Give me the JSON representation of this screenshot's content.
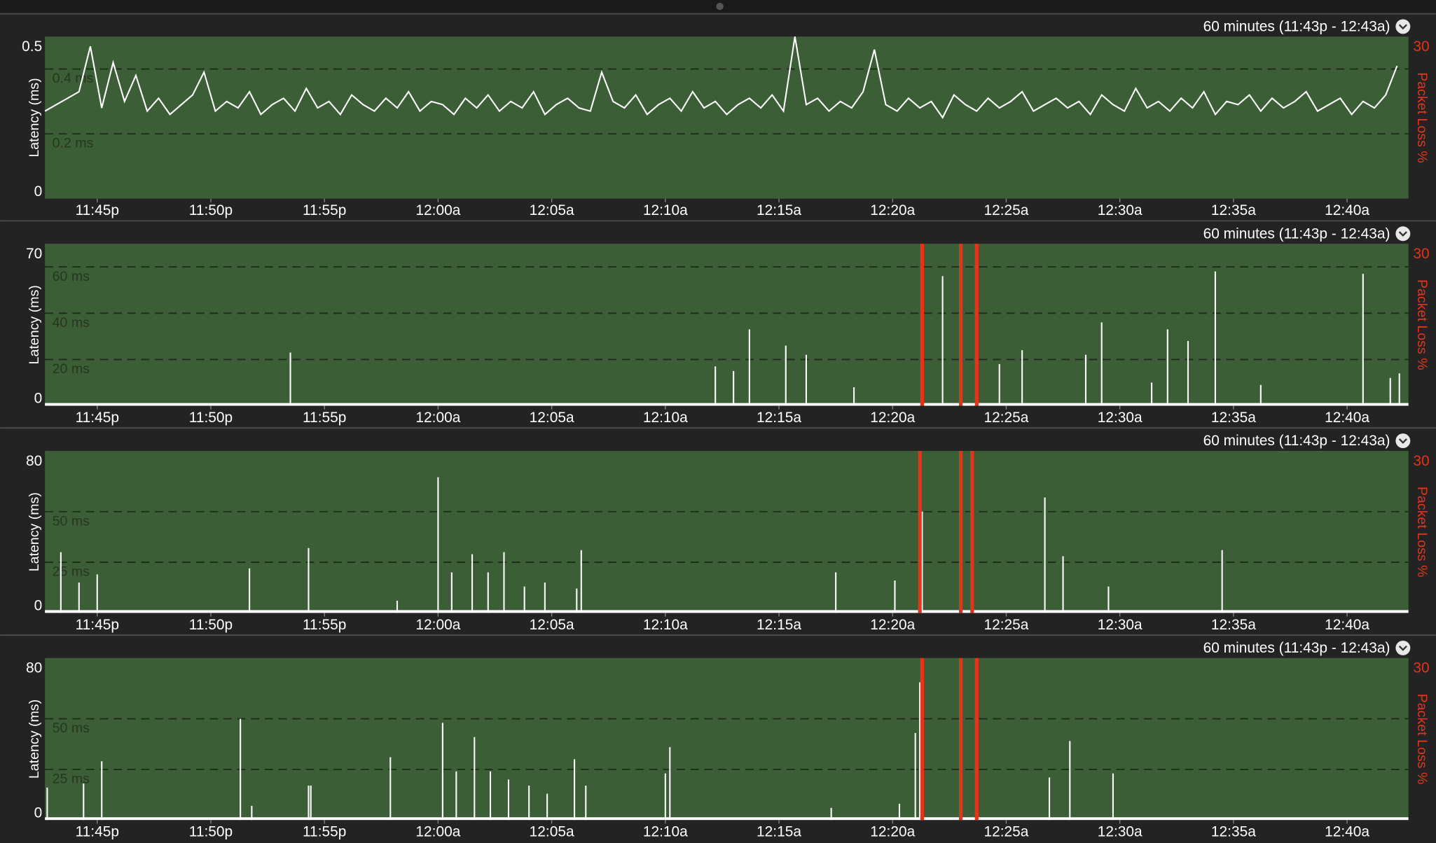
{
  "chart_data": [
    {
      "type": "line",
      "header": "60 minutes (11:43p - 12:43a)",
      "ylabel": "Latency (ms)",
      "y2label": "Packet Loss %",
      "xlim": [
        0,
        60
      ],
      "ylim": [
        0,
        0.5
      ],
      "y2lim": [
        0,
        30
      ],
      "y2ticks": [
        30
      ],
      "yticks": [
        0,
        {
          "value": 0.2,
          "label": "0.2 ms"
        },
        {
          "value": 0.4,
          "label": "0.4 ms"
        },
        0.5
      ],
      "xticks": [
        {
          "value": 2.3,
          "label": "11:45p"
        },
        {
          "value": 7.3,
          "label": "11:50p"
        },
        {
          "value": 12.3,
          "label": "11:55p"
        },
        {
          "value": 17.3,
          "label": "12:00a"
        },
        {
          "value": 22.3,
          "label": "12:05a"
        },
        {
          "value": 27.3,
          "label": "12:10a"
        },
        {
          "value": 32.3,
          "label": "12:15a"
        },
        {
          "value": 37.3,
          "label": "12:20a"
        },
        {
          "value": 42.3,
          "label": "12:25a"
        },
        {
          "value": 47.3,
          "label": "12:30a"
        },
        {
          "value": 52.3,
          "label": "12:35a"
        },
        {
          "value": 57.3,
          "label": "12:40a"
        }
      ],
      "color": "#ffffff",
      "x": [
        0,
        0.5,
        1,
        1.5,
        2,
        2.5,
        3,
        3.5,
        4,
        4.5,
        5,
        5.5,
        6,
        6.5,
        7,
        7.5,
        8,
        8.5,
        9,
        9.5,
        10,
        10.5,
        11,
        11.5,
        12,
        12.5,
        13,
        13.5,
        14,
        14.5,
        15,
        15.5,
        16,
        16.5,
        17,
        17.5,
        18,
        18.5,
        19,
        19.5,
        20,
        20.5,
        21,
        21.5,
        22,
        22.5,
        23,
        23.5,
        24,
        24.5,
        25,
        25.5,
        26,
        26.5,
        27,
        27.5,
        28,
        28.5,
        29,
        29.5,
        30,
        30.5,
        31,
        31.5,
        32,
        32.5,
        33,
        33.5,
        34,
        34.5,
        35,
        35.5,
        36,
        36.5,
        37,
        37.5,
        38,
        38.5,
        39,
        39.5,
        40,
        40.5,
        41,
        41.5,
        42,
        42.5,
        43,
        43.5,
        44,
        44.5,
        45,
        45.5,
        46,
        46.5,
        47,
        47.5,
        48,
        48.5,
        49,
        49.5,
        50,
        50.5,
        51,
        51.5,
        52,
        52.5,
        53,
        53.5,
        54,
        54.5,
        55,
        55.5,
        56,
        56.5,
        57,
        57.5,
        58,
        58.5,
        59,
        59.5
      ],
      "values": [
        0.27,
        0.29,
        0.31,
        0.33,
        0.47,
        0.28,
        0.42,
        0.3,
        0.38,
        0.27,
        0.31,
        0.26,
        0.29,
        0.32,
        0.39,
        0.27,
        0.3,
        0.28,
        0.33,
        0.26,
        0.29,
        0.31,
        0.27,
        0.34,
        0.28,
        0.3,
        0.26,
        0.32,
        0.29,
        0.27,
        0.31,
        0.28,
        0.33,
        0.27,
        0.3,
        0.29,
        0.26,
        0.31,
        0.28,
        0.32,
        0.27,
        0.3,
        0.28,
        0.33,
        0.26,
        0.29,
        0.31,
        0.28,
        0.27,
        0.39,
        0.3,
        0.28,
        0.32,
        0.26,
        0.29,
        0.31,
        0.27,
        0.33,
        0.28,
        0.3,
        0.26,
        0.29,
        0.31,
        0.28,
        0.32,
        0.27,
        0.5,
        0.29,
        0.31,
        0.27,
        0.3,
        0.28,
        0.33,
        0.46,
        0.29,
        0.27,
        0.31,
        0.28,
        0.3,
        0.25,
        0.32,
        0.29,
        0.27,
        0.31,
        0.28,
        0.3,
        0.33,
        0.27,
        0.29,
        0.31,
        0.28,
        0.3,
        0.26,
        0.32,
        0.29,
        0.27,
        0.34,
        0.28,
        0.3,
        0.27,
        0.31,
        0.28,
        0.33,
        0.26,
        0.3,
        0.29,
        0.32,
        0.27,
        0.31,
        0.28,
        0.3,
        0.33,
        0.27,
        0.29,
        0.31,
        0.26,
        0.3,
        0.28,
        0.32,
        0.41
      ]
    },
    {
      "type": "bar",
      "header": "60 minutes (11:43p - 12:43a)",
      "ylabel": "Latency (ms)",
      "y2label": "Packet Loss %",
      "xlim": [
        0,
        60
      ],
      "ylim": [
        0,
        70
      ],
      "y2lim": [
        0,
        30
      ],
      "y2ticks": [
        30
      ],
      "yticks": [
        0,
        {
          "value": 20,
          "label": "20 ms"
        },
        {
          "value": 40,
          "label": "40 ms"
        },
        {
          "value": 60,
          "label": "60 ms"
        },
        70
      ],
      "xticks": [
        {
          "value": 2.3,
          "label": "11:45p"
        },
        {
          "value": 7.3,
          "label": "11:50p"
        },
        {
          "value": 12.3,
          "label": "11:55p"
        },
        {
          "value": 17.3,
          "label": "12:00a"
        },
        {
          "value": 22.3,
          "label": "12:05a"
        },
        {
          "value": 27.3,
          "label": "12:10a"
        },
        {
          "value": 32.3,
          "label": "12:15a"
        },
        {
          "value": 37.3,
          "label": "12:20a"
        },
        {
          "value": 42.3,
          "label": "12:25a"
        },
        {
          "value": 47.3,
          "label": "12:30a"
        },
        {
          "value": 52.3,
          "label": "12:35a"
        },
        {
          "value": 57.3,
          "label": "12:40a"
        }
      ],
      "color": "#ffffff",
      "x": [
        10.8,
        29.5,
        30.3,
        31.0,
        32.6,
        33.5,
        35.6,
        39.5,
        42.0,
        43.0,
        45.8,
        46.5,
        48.7,
        49.4,
        50.3,
        51.5,
        53.5,
        58.0,
        59.2,
        59.6
      ],
      "values": [
        23,
        17,
        15,
        33,
        26,
        22,
        8,
        56,
        18,
        24,
        22,
        36,
        10,
        33,
        28,
        58,
        9,
        57,
        12,
        14
      ],
      "loss": {
        "color": "#e2351b",
        "x": [
          38.6,
          40.3,
          41.0
        ],
        "values": [
          30,
          30,
          30
        ]
      }
    },
    {
      "type": "bar",
      "header": "60 minutes (11:43p - 12:43a)",
      "ylabel": "Latency (ms)",
      "y2label": "Packet Loss %",
      "xlim": [
        0,
        60
      ],
      "ylim": [
        0,
        80
      ],
      "y2lim": [
        0,
        30
      ],
      "y2ticks": [
        30
      ],
      "yticks": [
        0,
        {
          "value": 25,
          "label": "25 ms"
        },
        {
          "value": 50,
          "label": "50 ms"
        },
        80
      ],
      "xticks": [
        {
          "value": 2.3,
          "label": "11:45p"
        },
        {
          "value": 7.3,
          "label": "11:50p"
        },
        {
          "value": 12.3,
          "label": "11:55p"
        },
        {
          "value": 17.3,
          "label": "12:00a"
        },
        {
          "value": 22.3,
          "label": "12:05a"
        },
        {
          "value": 27.3,
          "label": "12:10a"
        },
        {
          "value": 32.3,
          "label": "12:15a"
        },
        {
          "value": 37.3,
          "label": "12:20a"
        },
        {
          "value": 42.3,
          "label": "12:25a"
        },
        {
          "value": 47.3,
          "label": "12:30a"
        },
        {
          "value": 52.3,
          "label": "12:35a"
        },
        {
          "value": 57.3,
          "label": "12:40a"
        }
      ],
      "color": "#ffffff",
      "x": [
        0.7,
        1.5,
        2.3,
        9.0,
        11.6,
        15.5,
        17.3,
        17.9,
        18.8,
        19.5,
        20.2,
        21.1,
        22.0,
        23.4,
        23.6,
        34.8,
        37.4,
        38.6,
        44.0,
        44.8,
        46.8,
        51.8
      ],
      "values": [
        30,
        15,
        19,
        22,
        32,
        6,
        67,
        20,
        29,
        20,
        30,
        13,
        15,
        12,
        31,
        20,
        16,
        50,
        57,
        28,
        13,
        31
      ],
      "loss": {
        "color": "#e2351b",
        "x": [
          38.5,
          40.3,
          40.8
        ],
        "values": [
          30,
          30,
          30
        ]
      }
    },
    {
      "type": "bar",
      "header": "60 minutes (11:43p - 12:43a)",
      "ylabel": "Latency (ms)",
      "y2label": "Packet Loss %",
      "xlim": [
        0,
        60
      ],
      "ylim": [
        0,
        80
      ],
      "y2lim": [
        0,
        30
      ],
      "y2ticks": [
        30
      ],
      "yticks": [
        0,
        {
          "value": 25,
          "label": "25 ms"
        },
        {
          "value": 50,
          "label": "50 ms"
        },
        80
      ],
      "xticks": [
        {
          "value": 2.3,
          "label": "11:45p"
        },
        {
          "value": 7.3,
          "label": "11:50p"
        },
        {
          "value": 12.3,
          "label": "11:55p"
        },
        {
          "value": 17.3,
          "label": "12:00a"
        },
        {
          "value": 22.3,
          "label": "12:05a"
        },
        {
          "value": 27.3,
          "label": "12:10a"
        },
        {
          "value": 32.3,
          "label": "12:15a"
        },
        {
          "value": 37.3,
          "label": "12:20a"
        },
        {
          "value": 42.3,
          "label": "12:25a"
        },
        {
          "value": 47.3,
          "label": "12:30a"
        },
        {
          "value": 52.3,
          "label": "12:35a"
        },
        {
          "value": 57.3,
          "label": "12:40a"
        }
      ],
      "color": "#ffffff",
      "x": [
        0.1,
        1.7,
        2.5,
        8.6,
        9.1,
        11.6,
        11.7,
        15.2,
        17.5,
        18.1,
        18.9,
        19.6,
        20.4,
        21.3,
        22.1,
        23.3,
        23.8,
        27.3,
        27.5,
        34.6,
        37.6,
        38.3,
        38.5,
        44.2,
        45.1,
        47.0
      ],
      "values": [
        16,
        18,
        29,
        50,
        7,
        17,
        17,
        31,
        48,
        24,
        41,
        24,
        20,
        17,
        13,
        30,
        17,
        23,
        36,
        6,
        8,
        43,
        68,
        21,
        39,
        23
      ],
      "loss": {
        "color": "#e2351b",
        "x": [
          38.6,
          40.3,
          41.0
        ],
        "values": [
          30,
          30,
          30
        ]
      }
    }
  ]
}
